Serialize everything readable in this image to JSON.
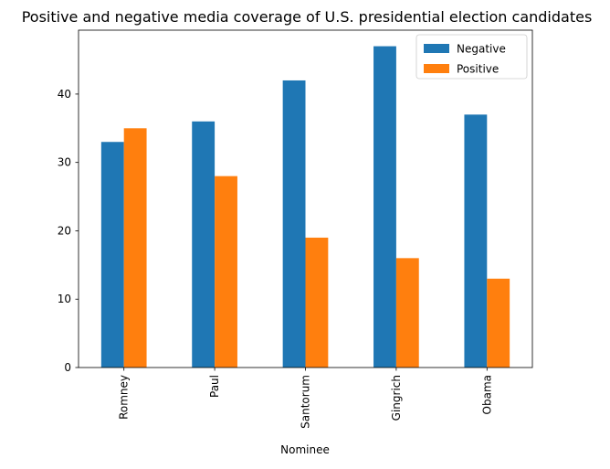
{
  "chart_data": {
    "type": "bar",
    "title": "Positive and negative media coverage of U.S. presidential election candidates",
    "xlabel": "Nominee",
    "ylabel": "",
    "categories": [
      "Romney",
      "Paul",
      "Santorum",
      "Gingrich",
      "Obama"
    ],
    "series": [
      {
        "name": "Negative",
        "color": "#1f77b4",
        "values": [
          33,
          36,
          42,
          47,
          37
        ]
      },
      {
        "name": "Positive",
        "color": "#ff7f0e",
        "values": [
          35,
          28,
          19,
          16,
          13
        ]
      }
    ],
    "ylim": [
      0,
      49.35
    ],
    "yticks": [
      0,
      10,
      20,
      30,
      40
    ],
    "legend": "top-right",
    "grid": false
  }
}
